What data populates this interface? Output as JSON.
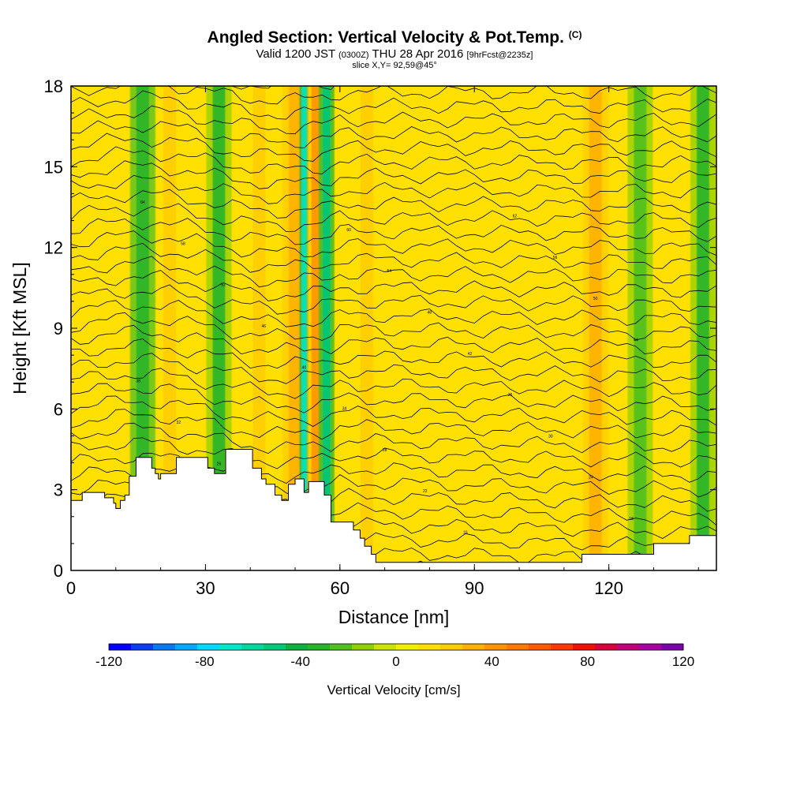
{
  "header": {
    "title": "Angled Section: Vertical Velocity & Pot.Temp.",
    "title_unit": "(C)",
    "valid_prefix": "Valid 1200 JST",
    "valid_utc": "(0300Z)",
    "valid_date": "THU 28 Apr 2016",
    "forecast": "[9hrFcst@2235z]",
    "slice": "slice X,Y= 92,59@45°"
  },
  "chart_data": {
    "type": "heatmap",
    "xlabel": "Distance [nm]",
    "ylabel": "Height [Kft MSL]",
    "xlim": [
      0,
      144
    ],
    "ylim": [
      0,
      18
    ],
    "x_ticks": [
      0,
      30,
      60,
      90,
      120
    ],
    "y_ticks": [
      0,
      3,
      6,
      9,
      12,
      15,
      18
    ],
    "grid": false,
    "background_value": 10,
    "updraft_columns": [
      {
        "x": 16,
        "value": -35
      },
      {
        "x": 22,
        "value": 25
      },
      {
        "x": 33,
        "value": -28
      },
      {
        "x": 42,
        "value": 25
      },
      {
        "x": 50,
        "value": 35
      },
      {
        "x": 52,
        "value": -70
      },
      {
        "x": 54.5,
        "value": 45
      },
      {
        "x": 57,
        "value": -50
      },
      {
        "x": 66,
        "value": 25
      },
      {
        "x": 117,
        "value": 35
      },
      {
        "x": 127,
        "value": -25
      },
      {
        "x": 141,
        "value": -30
      }
    ],
    "terrain": [
      [
        0,
        2.6
      ],
      [
        2.5,
        2.6
      ],
      [
        2.5,
        2.9
      ],
      [
        7.5,
        2.9
      ],
      [
        7.5,
        2.7
      ],
      [
        9.5,
        2.7
      ],
      [
        9.5,
        2.5
      ],
      [
        10,
        2.5
      ],
      [
        10,
        2.3
      ],
      [
        11,
        2.3
      ],
      [
        11,
        2.6
      ],
      [
        12,
        2.6
      ],
      [
        12,
        2.8
      ],
      [
        13,
        2.8
      ],
      [
        13,
        3.5
      ],
      [
        14.5,
        3.5
      ],
      [
        14.5,
        4.2
      ],
      [
        18,
        4.2
      ],
      [
        18,
        3.8
      ],
      [
        18.8,
        3.8
      ],
      [
        18.8,
        3.6
      ],
      [
        19.5,
        3.6
      ],
      [
        19.5,
        3.4
      ],
      [
        20,
        3.4
      ],
      [
        20,
        3.6
      ],
      [
        23.5,
        3.6
      ],
      [
        23.5,
        4.2
      ],
      [
        30.5,
        4.2
      ],
      [
        30.5,
        3.8
      ],
      [
        32,
        3.8
      ],
      [
        32,
        3.6
      ],
      [
        34.5,
        3.6
      ],
      [
        34.5,
        4.5
      ],
      [
        40.5,
        4.5
      ],
      [
        40.5,
        3.8
      ],
      [
        42.5,
        3.8
      ],
      [
        42.5,
        3.4
      ],
      [
        43.5,
        3.4
      ],
      [
        43.5,
        3.2
      ],
      [
        45.5,
        3.2
      ],
      [
        45.5,
        2.8
      ],
      [
        47,
        2.8
      ],
      [
        47,
        2.6
      ],
      [
        48.5,
        2.6
      ],
      [
        48.5,
        3.2
      ],
      [
        50,
        3.2
      ],
      [
        50,
        3.4
      ],
      [
        52,
        3.4
      ],
      [
        52,
        2.9
      ],
      [
        53,
        2.9
      ],
      [
        53,
        3.3
      ],
      [
        56.5,
        3.3
      ],
      [
        56.5,
        2.8
      ],
      [
        58,
        2.8
      ],
      [
        58,
        1.8
      ],
      [
        63,
        1.8
      ],
      [
        63,
        1.5
      ],
      [
        64.5,
        1.5
      ],
      [
        64.5,
        1.2
      ],
      [
        65.5,
        1.2
      ],
      [
        65.5,
        0.9
      ],
      [
        67,
        0.9
      ],
      [
        67,
        0.6
      ],
      [
        68,
        0.6
      ],
      [
        68,
        0.3
      ],
      [
        114,
        0.3
      ],
      [
        114,
        0.6
      ],
      [
        130,
        0.6
      ],
      [
        130,
        1.0
      ],
      [
        138,
        1.0
      ],
      [
        138,
        1.3
      ],
      [
        144,
        1.3
      ]
    ],
    "theta_contours": {
      "count": 36,
      "contour_labels": [
        "12",
        "14",
        "16",
        "18",
        "20",
        "22",
        "24",
        "26",
        "28",
        "30",
        "32",
        "34",
        "36",
        "38",
        "40",
        "42",
        "44",
        "46",
        "48",
        "50",
        "52",
        "54",
        "56",
        "58",
        "60",
        "62",
        "64"
      ]
    },
    "colorbar": {
      "label": "Vertical Velocity [cm/s]",
      "range": [
        -120,
        120
      ],
      "tick_values": [
        -120,
        -80,
        -40,
        0,
        40,
        80,
        120
      ],
      "tick_labels": [
        "-120",
        "-80",
        "-40",
        "0",
        "40",
        "80",
        "120"
      ],
      "colors": [
        "#0000ff",
        "#0a3cf0",
        "#0a78f0",
        "#00a8ff",
        "#00d8ff",
        "#00e8c8",
        "#00d89c",
        "#00c878",
        "#10b040",
        "#28b428",
        "#50c020",
        "#90d000",
        "#c8e400",
        "#f0f000",
        "#ffe000",
        "#ffcc00",
        "#ffb000",
        "#ff9400",
        "#ff7800",
        "#ff5a00",
        "#ff3800",
        "#f01000",
        "#d8003c",
        "#c00078",
        "#a800a0",
        "#7c00a8"
      ]
    }
  }
}
